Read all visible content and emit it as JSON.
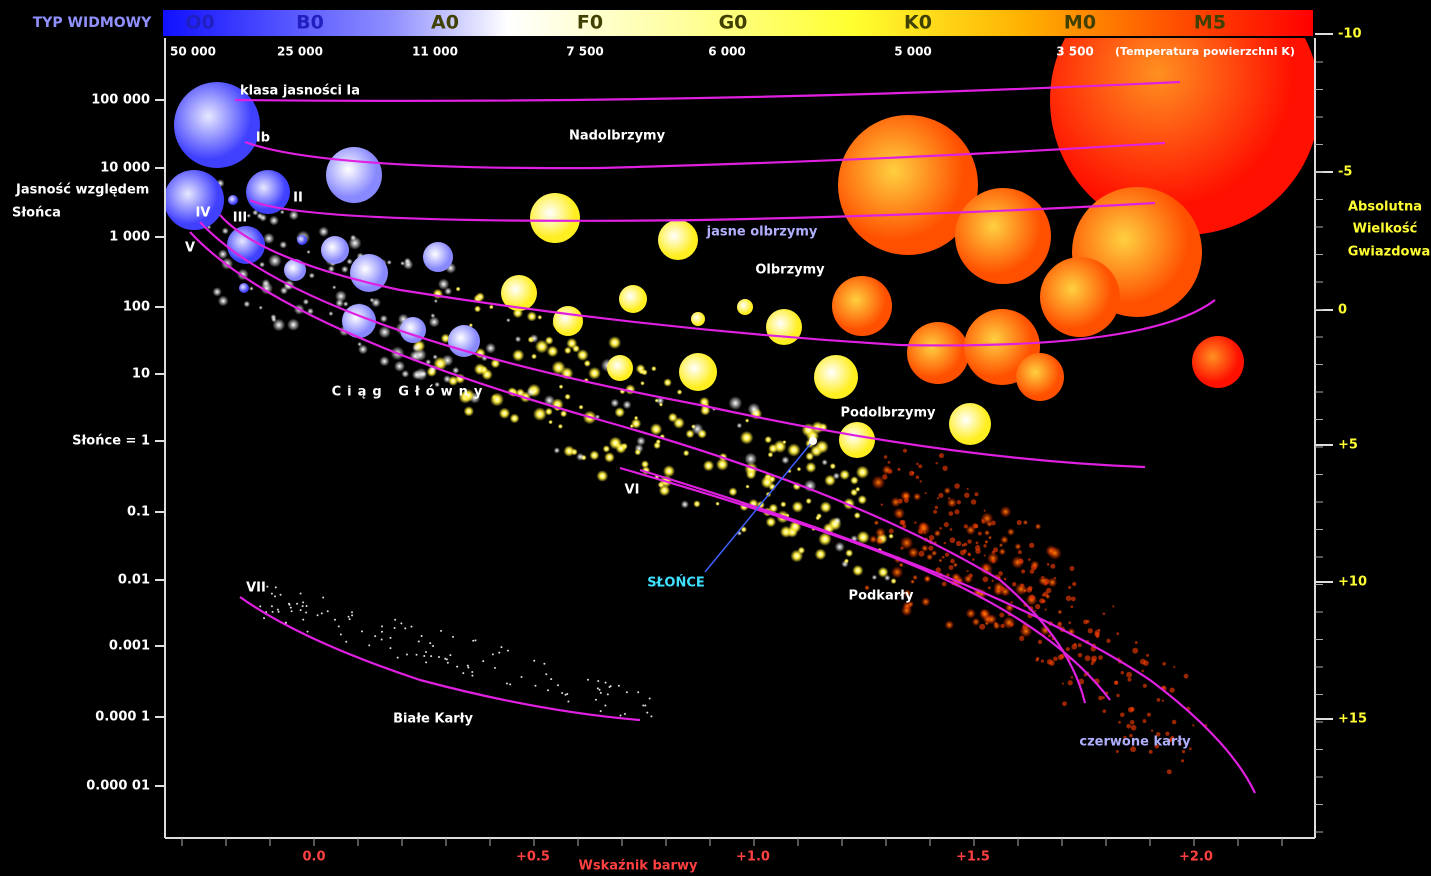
{
  "header": {
    "spectral_title": "TYP WIDMOWY",
    "spectral_classes": [
      "O0",
      "B0",
      "A0",
      "F0",
      "G0",
      "K0",
      "M0",
      "M5"
    ],
    "temperatures": [
      "50 000",
      "25 000",
      "11 000",
      "7 500",
      "6 000",
      "5 000",
      "3 500",
      "(Temperatura powierzchni K)"
    ]
  },
  "left_axis": {
    "title": [
      "Jasność względem",
      "Słońca"
    ],
    "ticks": [
      "100 000",
      "10 000",
      "1 000",
      "100",
      "10",
      "Słońce = 1",
      "0.1",
      "0.01",
      "0.001",
      "0.000 1",
      "0.000 01"
    ]
  },
  "right_axis": {
    "title": [
      "Absolutna",
      "Wielkość",
      "Gwiazdowa"
    ],
    "ticks": [
      "-10",
      "-5",
      "0",
      "+5",
      "+10",
      "+15"
    ]
  },
  "bottom_axis": {
    "title": "Wskaźnik barwy",
    "ticks": [
      "0.0",
      "+0.5",
      "+1.0",
      "+1.5",
      "+2.0"
    ]
  },
  "labels": {
    "ia": "klasa jasności Ia",
    "ib": "Ib",
    "ii": "II",
    "iii": "III",
    "iv": "IV",
    "v": "V",
    "vi": "VI",
    "vii": "VII",
    "supergiants": "Nadolbrzymy",
    "bright_giants": "jasne olbrzymy",
    "giants": "Olbrzymy",
    "main_sequence": "Ciąg Główny",
    "subgiants": "Podolbrzymy",
    "sun": "SŁOŃCE",
    "subdwarfs": "Podkarły",
    "white_dwarfs": "Białe Karły",
    "red_dwarfs": "czerwone karły"
  }
}
